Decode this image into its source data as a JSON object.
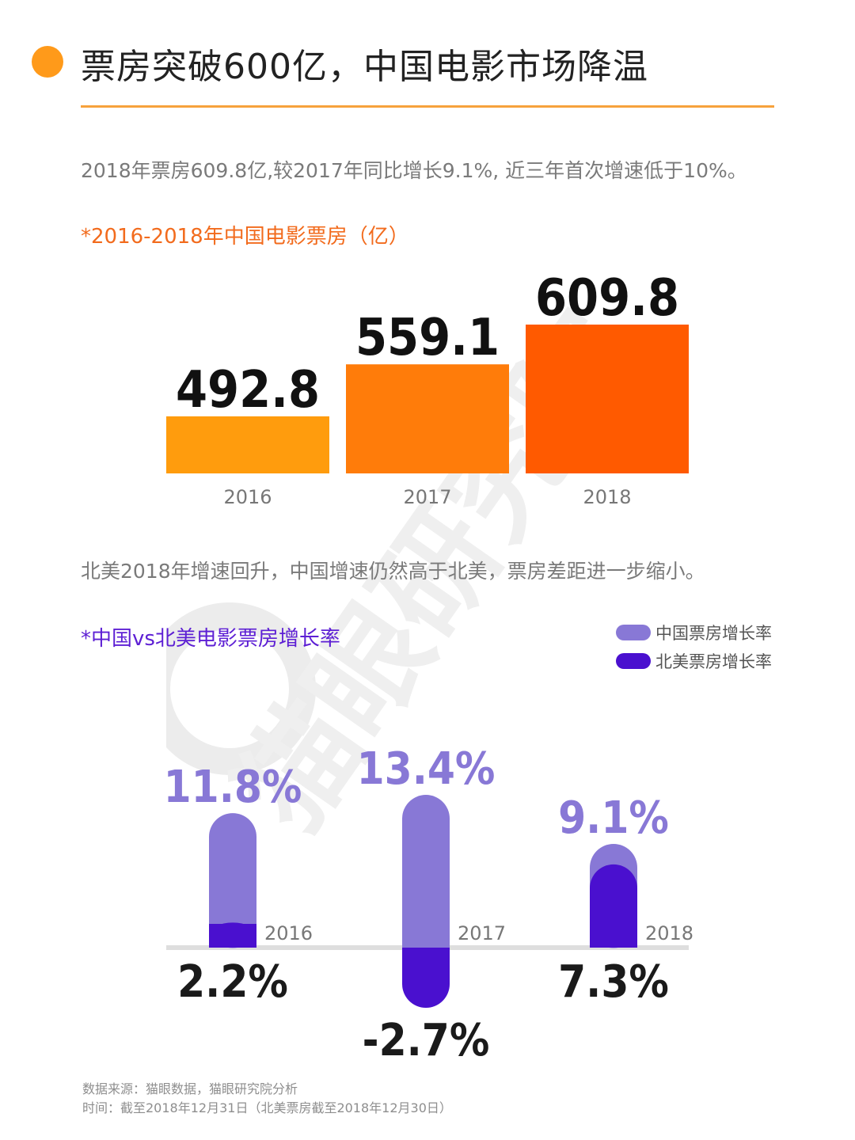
{
  "header": {
    "title": "票房突破600亿，中国电影市场降温"
  },
  "section1": {
    "subtitle": "2018年票房609.8亿,较2017年同比增长9.1%, 近三年首次增速低于10%。",
    "chart_label": "*2016-2018年中国电影票房（亿）"
  },
  "section2": {
    "subtitle": "北美2018年增速回升，中国增速仍然高于北美，票房差距进一步缩小。",
    "chart_label": "*中国vs北美电影票房增长率"
  },
  "legend": {
    "china": "中国票房增长率",
    "north_america": "北美票房增长率"
  },
  "footer": {
    "source": "数据来源：猫眼数据，猫眼研究院分析",
    "time": "时间：截至2018年12月31日（北美票房截至2018年12月30日）"
  },
  "watermark_text": "猫眼研究院",
  "colors": {
    "accent": "#ff9a1a",
    "title_rule": "#f7a23c",
    "box_office_bars": [
      "#ff9c0d",
      "#ff7c0a",
      "#ff5a00"
    ],
    "china_growth": "#8878d6",
    "north_america_growth": "#4a10cf"
  },
  "chart_data": [
    {
      "type": "bar",
      "categories": [
        "2016",
        "2017",
        "2018"
      ],
      "values": [
        492.8,
        559.1,
        609.8
      ],
      "value_labels": [
        "492.8",
        "559.1",
        "609.8"
      ],
      "ylim": [
        420,
        640
      ]
    },
    {
      "type": "bar",
      "categories": [
        "2016",
        "2017",
        "2018"
      ],
      "series": [
        {
          "name": "中国票房增长率",
          "values": [
            11.8,
            13.4,
            9.1
          ],
          "labels": [
            "11.8%",
            "13.4%",
            "9.1%"
          ]
        },
        {
          "name": "北美票房增长率",
          "values": [
            2.2,
            -2.7,
            7.3
          ],
          "labels": [
            "2.2%",
            "-2.7%",
            "7.3%"
          ]
        }
      ]
    }
  ]
}
